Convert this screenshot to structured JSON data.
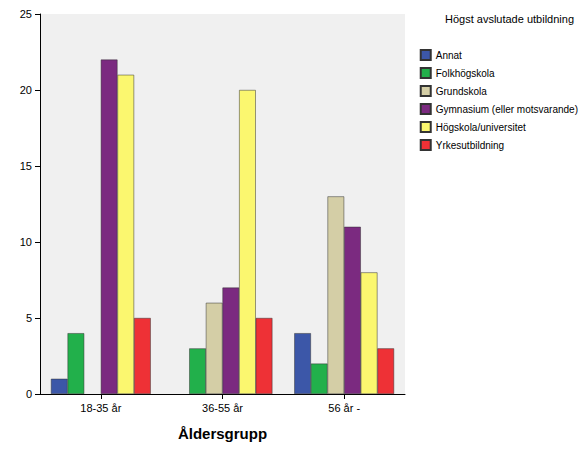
{
  "chart_data": {
    "type": "bar",
    "xlabel": "Åldersgrupp",
    "legend_title": "Högst avslutade utbildning",
    "categories": [
      "18-35 år",
      "36-55 år",
      "56 år -"
    ],
    "series": [
      {
        "name": "Annat",
        "color": "#3c57a8",
        "values": [
          1,
          null,
          4
        ]
      },
      {
        "name": "Folkhögskola",
        "color": "#22b04b",
        "values": [
          4,
          3,
          2
        ]
      },
      {
        "name": "Grundskola",
        "color": "#d4cea6",
        "values": [
          null,
          6,
          13
        ]
      },
      {
        "name": "Gymnasium (eller motsvarande)",
        "color": "#7b2a80",
        "values": [
          22,
          7,
          11
        ]
      },
      {
        "name": "Högskola/universitet",
        "color": "#fbf76f",
        "values": [
          21,
          20,
          8
        ]
      },
      {
        "name": "Yrkesutbildning",
        "color": "#ee3136",
        "values": [
          5,
          5,
          3
        ]
      }
    ],
    "ylim": [
      0,
      25
    ],
    "yticks": [
      0,
      5,
      10,
      15,
      20,
      25
    ],
    "grid": false,
    "legend": "right"
  }
}
